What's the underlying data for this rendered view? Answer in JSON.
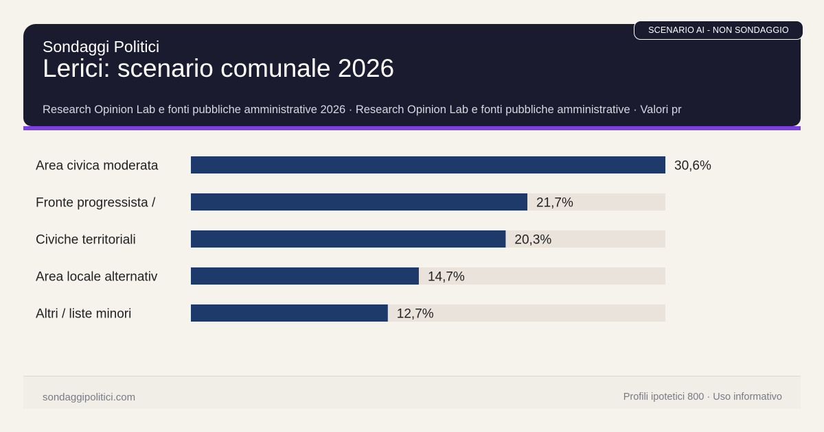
{
  "header": {
    "brand": "Sondaggi Politici",
    "title": "Lerici: scenario comunale 2026",
    "source": "Research Opinion Lab e fonti pubbliche amministrative 2026 · Research Opinion Lab e fonti pubbliche amministrative · Valori pr",
    "badge": "SCENARIO AI - NON SONDAGGIO"
  },
  "chart_data": {
    "type": "bar",
    "orientation": "horizontal",
    "categories": [
      "Area civica moderata",
      "Fronte progressista /",
      "Civiche territoriali",
      "Area locale alternativ",
      "Altri / liste minori"
    ],
    "values": [
      30.6,
      21.7,
      20.3,
      14.7,
      12.7
    ],
    "value_labels": [
      "30,6%",
      "21,7%",
      "20,3%",
      "14,7%",
      "12,7%"
    ],
    "xlim": [
      0,
      30.6
    ],
    "grid": false,
    "legend": "none",
    "colors": {
      "bar": "#1e3a6b",
      "track": "#e9e3dc",
      "label": "#222222"
    }
  },
  "footer": {
    "site": "sondaggipolitici.com",
    "note": "Profili ipotetici 800 · Uso informativo"
  },
  "colors": {
    "header_bg": "#1b1b30",
    "accent": "#7c3fe0",
    "page_bg": "#f6f3ec"
  }
}
